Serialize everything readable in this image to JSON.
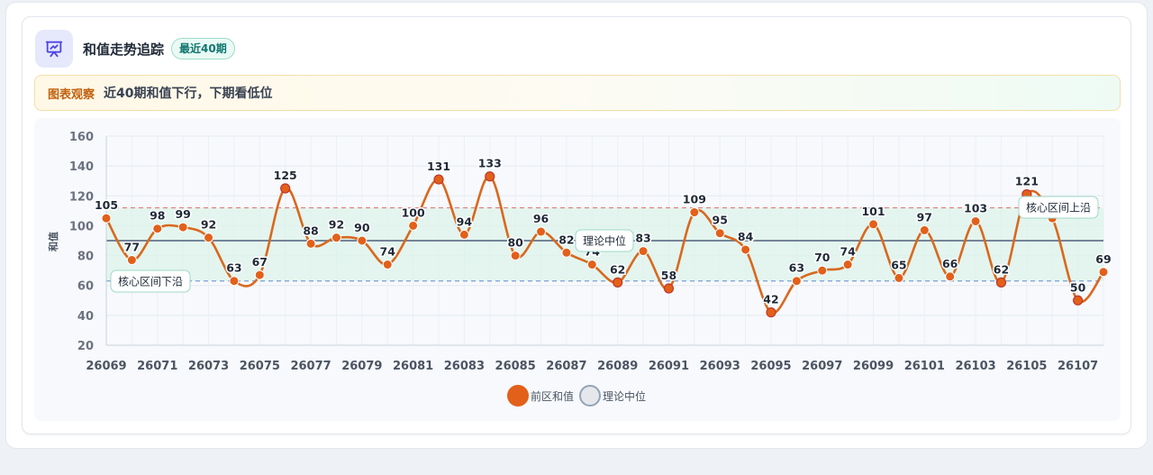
{
  "header": {
    "icon": "presentation-chart-icon",
    "title": "和值走势追踪",
    "badge": "最近40期"
  },
  "observation": {
    "label": "图表观察",
    "text": "近40期和值下行，下期看低位"
  },
  "colors": {
    "line": "#d9681e",
    "point": "#e2601a",
    "median": "#64748b",
    "upper_band": "#e27d7d",
    "lower_band": "#7b9fd0",
    "band_fill": "#dcf3ea"
  },
  "chart_data": {
    "type": "line",
    "ylabel": "和值",
    "ylim": [
      20,
      160
    ],
    "yticks": [
      20,
      40,
      60,
      80,
      100,
      120,
      140,
      160
    ],
    "x": [
      26069,
      26070,
      26071,
      26072,
      26073,
      26074,
      26075,
      26076,
      26077,
      26078,
      26079,
      26080,
      26081,
      26082,
      26083,
      26084,
      26085,
      26086,
      26087,
      26088,
      26089,
      26090,
      26091,
      26092,
      26093,
      26094,
      26095,
      26096,
      26097,
      26098,
      26099,
      26100,
      26101,
      26102,
      26103,
      26104,
      26105,
      26106,
      26107,
      26108
    ],
    "xtick_labels": [
      "26069",
      "26071",
      "26073",
      "26075",
      "26077",
      "26079",
      "26081",
      "26083",
      "26085",
      "26087",
      "26089",
      "26091",
      "26093",
      "26095",
      "26097",
      "26099",
      "26101",
      "26103",
      "26105",
      "26107"
    ],
    "series": [
      {
        "name": "前区和值",
        "values": [
          105,
          77,
          98,
          99,
          92,
          63,
          67,
          125,
          88,
          92,
          90,
          74,
          100,
          131,
          94,
          133,
          80,
          96,
          82,
          74,
          62,
          83,
          58,
          109,
          95,
          84,
          42,
          63,
          70,
          74,
          101,
          65,
          97,
          66,
          103,
          62,
          121,
          105,
          50,
          69
        ]
      }
    ],
    "median_line": {
      "name": "理论中位",
      "value": 90
    },
    "core_band": {
      "lower": 63,
      "upper": 112,
      "lower_label": "核心区间下沿",
      "upper_label": "核心区间上沿"
    },
    "legend": [
      {
        "label": "前区和值",
        "color": "#e2601a"
      },
      {
        "label": "理论中位",
        "color": "#e5e7eb"
      }
    ],
    "grid": true,
    "legend_position": "bottom-center"
  }
}
